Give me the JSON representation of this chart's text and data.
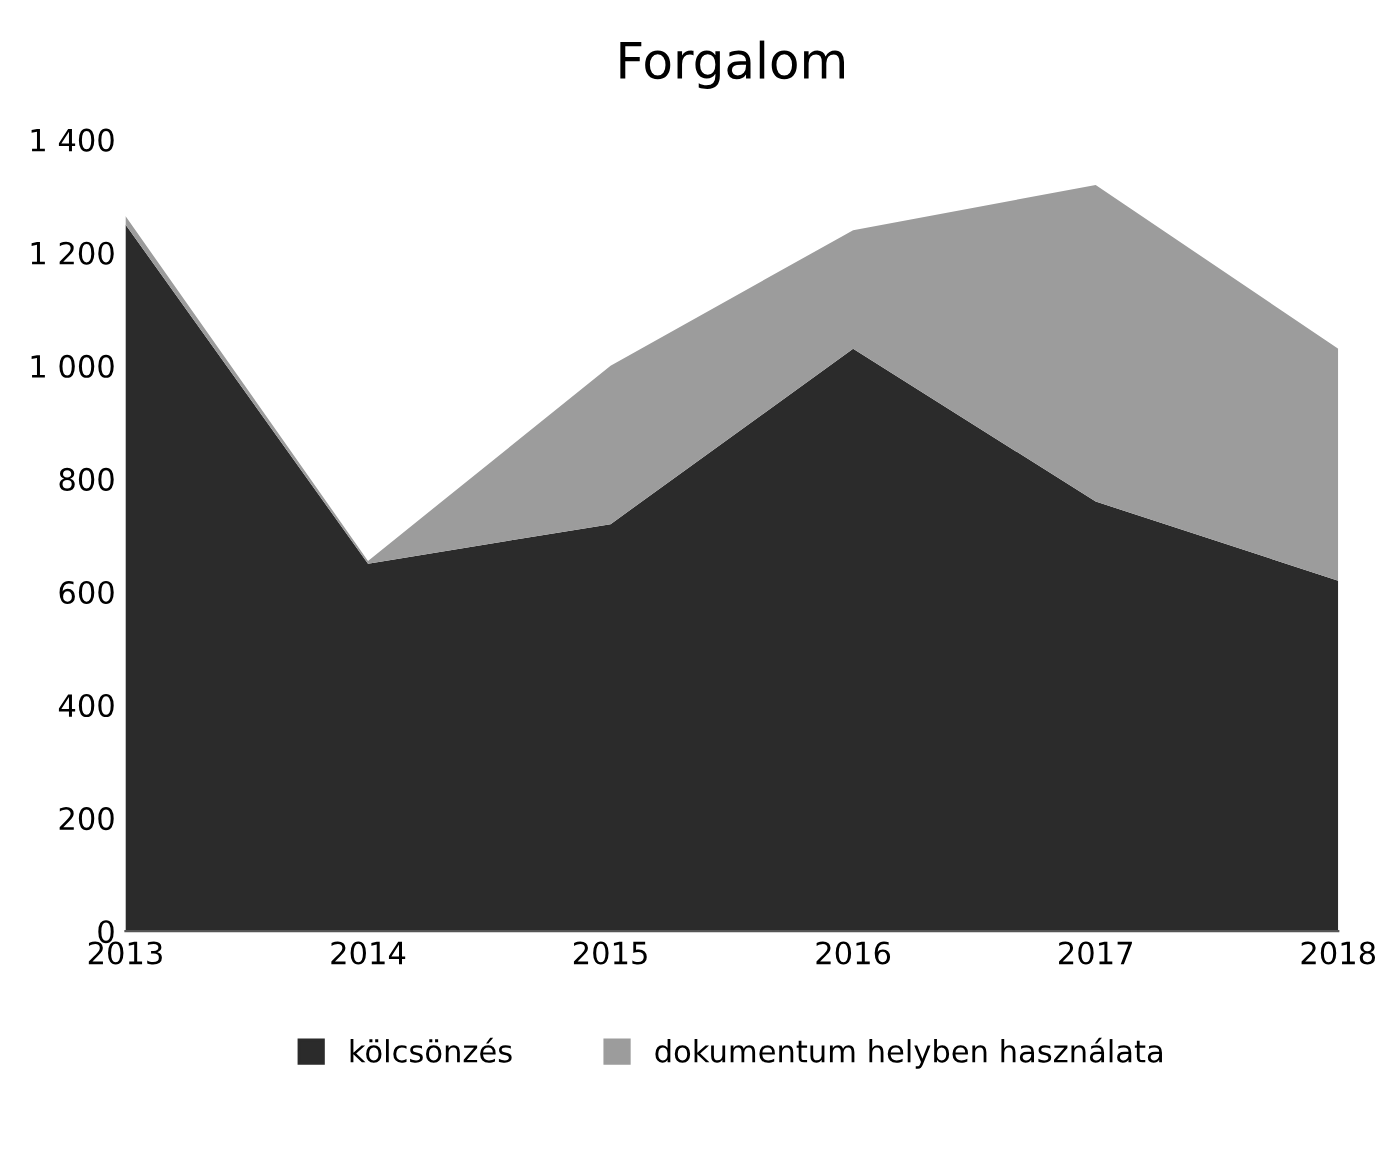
{
  "chart_data": {
    "type": "area",
    "title": "Forgalom",
    "stacked": true,
    "categories": [
      "2013",
      "2014",
      "2015",
      "2016",
      "2017",
      "2018"
    ],
    "series": [
      {
        "name": "kölcsönzés",
        "color": "#2b2b2b",
        "values": [
          1250,
          650,
          720,
          1030,
          760,
          620
        ]
      },
      {
        "name": "dokumentum helyben használata",
        "color": "#9c9c9c",
        "values": [
          15,
          5,
          280,
          210,
          560,
          410
        ]
      }
    ],
    "ylim": [
      0,
      1400
    ],
    "yticks": [
      0,
      200,
      400,
      600,
      800,
      {
        "value": 1000,
        "label": "1 000"
      },
      {
        "value": 1200,
        "label": "1 200"
      },
      {
        "value": 1400,
        "label": "1 400"
      }
    ],
    "grid": false,
    "legend": "bottom"
  }
}
